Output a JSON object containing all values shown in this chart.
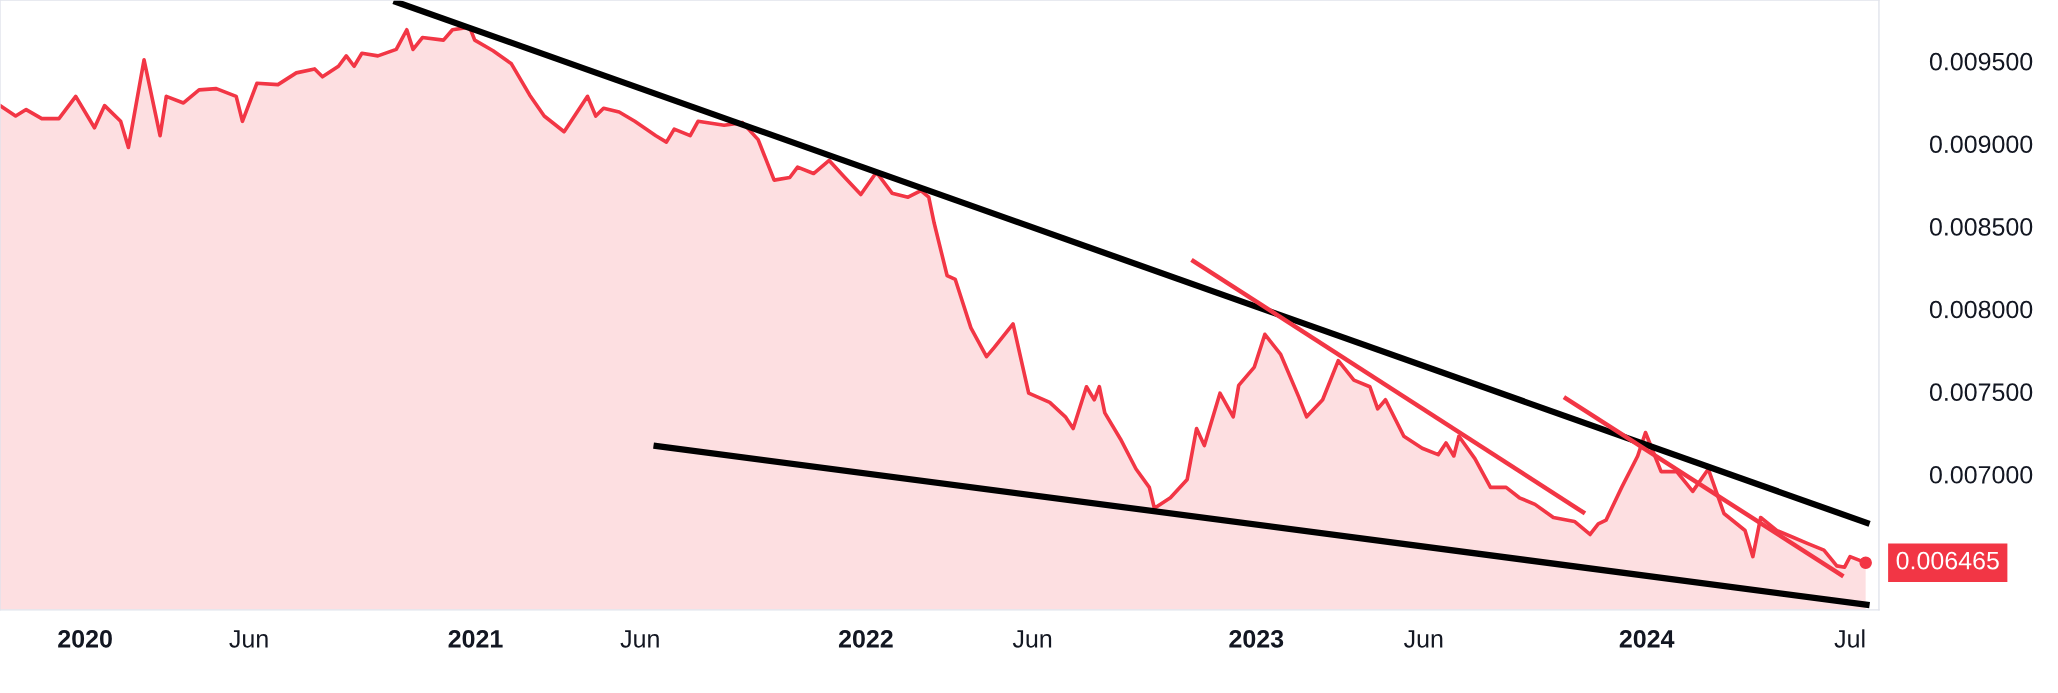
{
  "chart_data": {
    "type": "area",
    "xlim": [
      2019.782,
      2024.595
    ],
    "ylim": [
      0.00618,
      0.00987
    ],
    "xticks": [
      {
        "value": 2020,
        "label": "2020"
      },
      {
        "value": 2020.42,
        "label": "Jun"
      },
      {
        "value": 2021,
        "label": "2021"
      },
      {
        "value": 2021.422,
        "label": "Jun"
      },
      {
        "value": 2022,
        "label": "2022"
      },
      {
        "value": 2022.427,
        "label": "Jun"
      },
      {
        "value": 2023,
        "label": "2023"
      },
      {
        "value": 2023.429,
        "label": "Jun"
      },
      {
        "value": 2024,
        "label": "2024"
      },
      {
        "value": 2024.521,
        "label": "Jul"
      }
    ],
    "yticks": [
      {
        "value": 0.007,
        "label": "0.007000"
      },
      {
        "value": 0.0075,
        "label": "0.007500"
      },
      {
        "value": 0.008,
        "label": "0.008000"
      },
      {
        "value": 0.0085,
        "label": "0.008500"
      },
      {
        "value": 0.009,
        "label": "0.009000"
      },
      {
        "value": 0.0095,
        "label": "0.009500"
      }
    ],
    "grid": false,
    "legend": false,
    "marker": "none",
    "line_style": "solid",
    "series": [
      {
        "color": "#f23645",
        "x": [
          2019.782,
          2019.822,
          2019.849,
          2019.889,
          2019.933,
          2019.976,
          2020.024,
          2020.05,
          2020.091,
          2020.111,
          2020.151,
          2020.192,
          2020.208,
          2020.252,
          2020.292,
          2020.336,
          2020.387,
          2020.403,
          2020.44,
          2020.494,
          2020.541,
          2020.588,
          2020.608,
          2020.649,
          2020.669,
          2020.689,
          2020.709,
          2020.75,
          2020.797,
          2020.824,
          2020.84,
          2020.864,
          2020.918,
          2020.941,
          2020.985,
          2020.998,
          2021.045,
          2021.092,
          2021.139,
          2021.176,
          2021.227,
          2021.287,
          2021.308,
          2021.328,
          2021.368,
          2021.408,
          2021.462,
          2021.489,
          2021.509,
          2021.55,
          2021.57,
          2021.637,
          2021.684,
          2021.724,
          2021.765,
          2021.805,
          2021.825,
          2021.866,
          2021.906,
          2021.946,
          2021.987,
          2022.027,
          2022.067,
          2022.108,
          2022.141,
          2022.161,
          2022.175,
          2022.208,
          2022.229,
          2022.269,
          2022.309,
          2022.329,
          2022.377,
          2022.417,
          2022.471,
          2022.511,
          2022.531,
          2022.565,
          2022.585,
          2022.598,
          2022.612,
          2022.652,
          2022.692,
          2022.726,
          2022.739,
          2022.78,
          2022.823,
          2022.847,
          2022.867,
          2022.907,
          2022.941,
          2022.955,
          2022.995,
          2023.022,
          2023.062,
          2023.109,
          2023.129,
          2023.17,
          2023.21,
          2023.25,
          2023.291,
          2023.311,
          2023.331,
          2023.378,
          2023.425,
          2023.466,
          2023.486,
          2023.506,
          2023.519,
          2023.56,
          2023.6,
          2023.64,
          2023.674,
          2023.714,
          2023.761,
          2023.815,
          2023.855,
          2023.876,
          2023.896,
          2023.936,
          2023.977,
          2023.997,
          2024.037,
          2024.077,
          2024.118,
          2024.158,
          2024.198,
          2024.252,
          2024.272,
          2024.292,
          2024.333,
          2024.373,
          2024.413,
          2024.454,
          2024.487,
          2024.507,
          2024.521,
          2024.561
        ],
        "values": [
          0.009231,
          0.009168,
          0.009207,
          0.009152,
          0.009152,
          0.009287,
          0.009097,
          0.009231,
          0.009136,
          0.008978,
          0.009508,
          0.009049,
          0.009287,
          0.009247,
          0.009326,
          0.009334,
          0.009287,
          0.009136,
          0.009366,
          0.009358,
          0.009429,
          0.009453,
          0.009405,
          0.009469,
          0.009532,
          0.009469,
          0.009548,
          0.009532,
          0.009571,
          0.00969,
          0.009571,
          0.009643,
          0.009627,
          0.00969,
          0.009706,
          0.009627,
          0.009563,
          0.009484,
          0.009294,
          0.009168,
          0.009073,
          0.009287,
          0.009168,
          0.009215,
          0.009192,
          0.009136,
          0.009049,
          0.00901,
          0.009089,
          0.009049,
          0.009136,
          0.009112,
          0.009128,
          0.009025,
          0.00878,
          0.008796,
          0.008859,
          0.00882,
          0.008899,
          0.008796,
          0.008693,
          0.008828,
          0.008701,
          0.008677,
          0.008717,
          0.008677,
          0.008519,
          0.008203,
          0.008179,
          0.007886,
          0.007712,
          0.007768,
          0.00791,
          0.007491,
          0.007435,
          0.007348,
          0.007277,
          0.00753,
          0.007451,
          0.00753,
          0.007372,
          0.007214,
          0.007032,
          0.006921,
          0.006795,
          0.006858,
          0.006969,
          0.007277,
          0.007174,
          0.007491,
          0.007348,
          0.007538,
          0.007649,
          0.007847,
          0.007728,
          0.007467,
          0.007348,
          0.007451,
          0.007688,
          0.00757,
          0.00753,
          0.007396,
          0.007451,
          0.00723,
          0.007158,
          0.007119,
          0.00719,
          0.007111,
          0.00723,
          0.007095,
          0.006921,
          0.006921,
          0.006858,
          0.006818,
          0.006739,
          0.006715,
          0.006636,
          0.0067,
          0.006723,
          0.006921,
          0.007111,
          0.007253,
          0.007016,
          0.007016,
          0.006897,
          0.007032,
          0.006763,
          0.00666,
          0.006502,
          0.006739,
          0.00666,
          0.006621,
          0.006581,
          0.006541,
          0.006446,
          0.006438,
          0.006502,
          0.006465
        ]
      },
      {
        "type": "line",
        "color": "#000000",
        "x": [
          2020.79,
          2024.571
        ],
        "values": [
          0.009864,
          0.0067
        ]
      },
      {
        "type": "line",
        "color": "#000000",
        "x": [
          2021.456,
          2024.571
        ],
        "values": [
          0.007174,
          0.006209
        ]
      },
      {
        "type": "line",
        "color": "#f23645",
        "x": [
          2022.834,
          2023.842
        ],
        "values": [
          0.008298,
          0.006763
        ]
      },
      {
        "type": "line",
        "color": "#f23645",
        "x": [
          2023.788,
          2024.504
        ],
        "values": [
          0.007467,
          0.006383
        ]
      }
    ],
    "annotations": [
      {
        "text": "0.006465",
        "x": 2024.561,
        "y": 0.006465
      }
    ]
  }
}
